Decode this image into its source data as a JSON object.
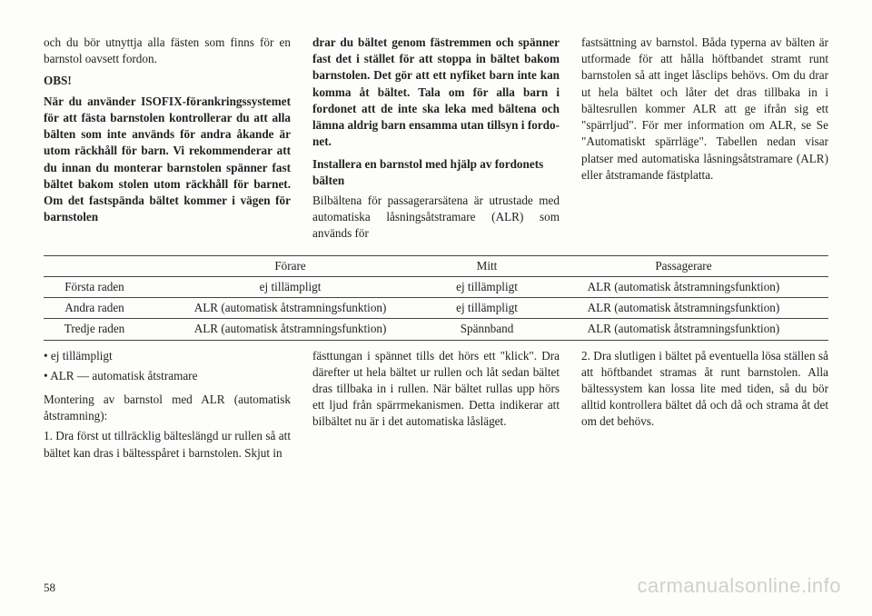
{
  "col1": {
    "p1": "och du bör utnyttja alla fästen som finns för en barnstol oavsett fordon.",
    "obs": "OBS!",
    "p2": "När du använder ISOFIX-förankringssystemet för att fästa barnstolen kontrollerar du att alla bälten som inte används för andra åkande är utom räckhåll för barn. Vi rekommenderar att du innan du monterar barnstolen spänner fast bältet bakom stolen utom räckhåll för barnet. Om det fastspända bäl­tet kommer i vägen för barnstolen"
  },
  "col2": {
    "p1": "drar du bältet genom fästremmen och spänner fast det i stället för att stoppa in bältet bakom barnsto­len. Det gör att ett nyfiket barn inte kan komma åt bältet. Tala om för alla barn i fordonet att de inte ska leka med bältena och lämna aldrig barn ensamma utan tillsyn i fordo­net.",
    "subhead1": "Installera en barnstol med hjälp av fordonets bälten",
    "p2": "Bilbältena för passagerarsätena är ut­rustade med automatiska låsningsåt­stramare (ALR) som används för"
  },
  "col3": {
    "p1": "fastsättning av barnstol. Båda ty­perna av bälten är utformade för att hålla höftbandet stramt runt barnsto­len så att inget låsclips behövs. Om du drar ut hela bältet och låter det dras tillbaka in i bältesrullen kommer ALR att ge ifrån sig ett \"spärrljud\". För mer information om ALR, se Se \"Au­tomatiskt spärrläge\". Tabellen nedan visar platser med automatiska lås­ningsåtstramare (ALR) eller åtstra­mande fästplatta."
  },
  "table": {
    "header": [
      "",
      "Förare",
      "Mitt",
      "Passagerare"
    ],
    "rows": [
      [
        "Första raden",
        "ej tillämpligt",
        "ej tillämpligt",
        "ALR (automatisk åtstram­ningsfunktion)"
      ],
      [
        "Andra raden",
        "ALR (automatisk åtstram­ningsfunktion)",
        "ej tillämpligt",
        "ALR (automatisk åtstram­ningsfunktion)"
      ],
      [
        "Tredje raden",
        "ALR (automatisk åtstram­ningsfunktion)",
        "Spännband",
        "ALR (automatisk åtstram­ningsfunktion)"
      ]
    ]
  },
  "bcol1": {
    "b1": "ej tillämpligt",
    "b2": "ALR — automatisk åtstramare",
    "p1": "Montering av barnstol med ALR (au­tomatisk åtstramning):",
    "p2": "1. Dra först ut tillräcklig bälteslängd ur rullen så att bältet kan dras i bäl­tesspåret i barnstolen. Skjut in"
  },
  "bcol2": {
    "p1": "fästtungan i spännet tills det hörs ett \"klick\". Dra därefter ut hela bältet ur rullen och låt sedan bältet dras till­baka in i rullen. När bältet rullas upp hörs ett ljud från spärrmekanism­en. Detta indikerar att bilbältet nu är i det automatiska låsläget."
  },
  "bcol3": {
    "p1": "2. Dra slutligen i bältet på eventuella lösa ställen så att höftbandet stramas åt runt barnstolen. Alla bältessystem kan lossa lite med tiden, så du bör alltid kontrollera bältet då och då och strama åt det om det behövs."
  },
  "pageNum": "58",
  "watermark": "carmanualsonline.info"
}
